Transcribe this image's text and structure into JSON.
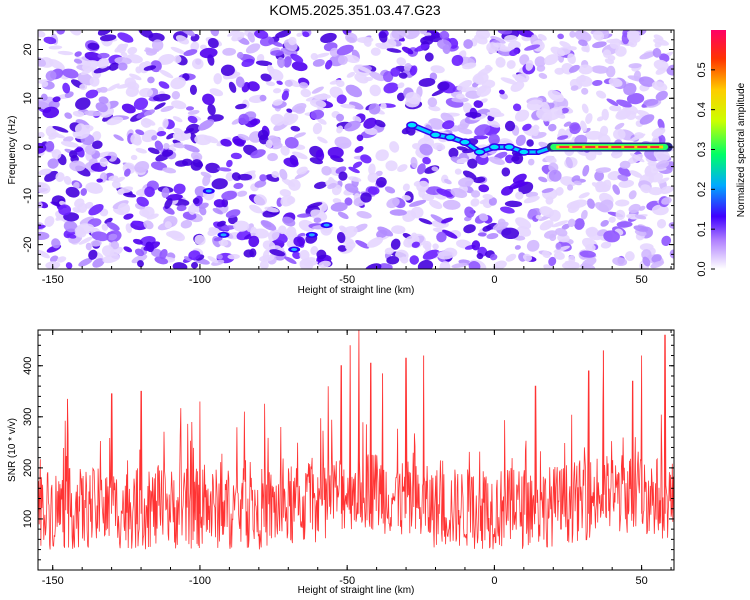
{
  "title": "KOM5.2025.351.03.47.G23",
  "chart_data": [
    {
      "type": "heatmap",
      "name": "spectrogram",
      "xlabel": "Height of straight line (km)",
      "ylabel": "Frequency (Hz)",
      "xlim": [
        -155,
        61
      ],
      "ylim": [
        -25,
        24
      ],
      "xticks": [
        -150,
        -100,
        -50,
        0,
        50
      ],
      "yticks": [
        -20,
        -10,
        0,
        10,
        20
      ],
      "colorbar": {
        "label": "Normalized spectral amplitude",
        "range": [
          0,
          0.6
        ],
        "ticks": [
          0.0,
          0.1,
          0.2,
          0.3,
          0.4,
          0.5
        ]
      },
      "ridge": {
        "description_points": [
          {
            "x": -28,
            "y": 4.5
          },
          {
            "x": -20,
            "y": 2.5
          },
          {
            "x": -15,
            "y": 2
          },
          {
            "x": -10,
            "y": 1
          },
          {
            "x": -5,
            "y": -1
          },
          {
            "x": 0,
            "y": 0
          },
          {
            "x": 5,
            "y": 0
          },
          {
            "x": 10,
            "y": -1
          },
          {
            "x": 15,
            "y": -1
          },
          {
            "x": 20,
            "y": 0
          },
          {
            "x": 58,
            "y": 0
          }
        ],
        "amplitude_line_x_range": [
          20,
          58
        ],
        "amplitude_line_value": 0.5
      },
      "secondary_feature": {
        "points": [
          {
            "x": -68,
            "y": -21
          },
          {
            "x": -62,
            "y": -18
          },
          {
            "x": -57,
            "y": -16
          },
          {
            "x": -97,
            "y": -9
          },
          {
            "x": -92,
            "y": -18
          }
        ]
      }
    },
    {
      "type": "line",
      "name": "snr",
      "xlabel": "Height of straight line (km)",
      "ylabel": "SNR (10 * v/v)",
      "xlim": [
        -155,
        61
      ],
      "ylim": [
        0,
        470
      ],
      "xticks": [
        -150,
        -100,
        -50,
        0,
        50
      ],
      "yticks": [
        100,
        200,
        300,
        400
      ],
      "color": "#ff3333",
      "baseline_mean": 120,
      "spikes": [
        {
          "x": -52,
          "y": 400
        },
        {
          "x": -49,
          "y": 440
        },
        {
          "x": -46,
          "y": 478
        },
        {
          "x": -42,
          "y": 405
        },
        {
          "x": -38,
          "y": 385
        },
        {
          "x": -30,
          "y": 415
        },
        {
          "x": -24,
          "y": 420
        },
        {
          "x": -100,
          "y": 330
        },
        {
          "x": -120,
          "y": 350
        },
        {
          "x": -130,
          "y": 345
        },
        {
          "x": -145,
          "y": 335
        },
        {
          "x": 14,
          "y": 360
        },
        {
          "x": 32,
          "y": 390
        },
        {
          "x": 37,
          "y": 430
        },
        {
          "x": 47,
          "y": 370
        },
        {
          "x": 50,
          "y": 420
        },
        {
          "x": 58,
          "y": 460
        }
      ]
    }
  ]
}
